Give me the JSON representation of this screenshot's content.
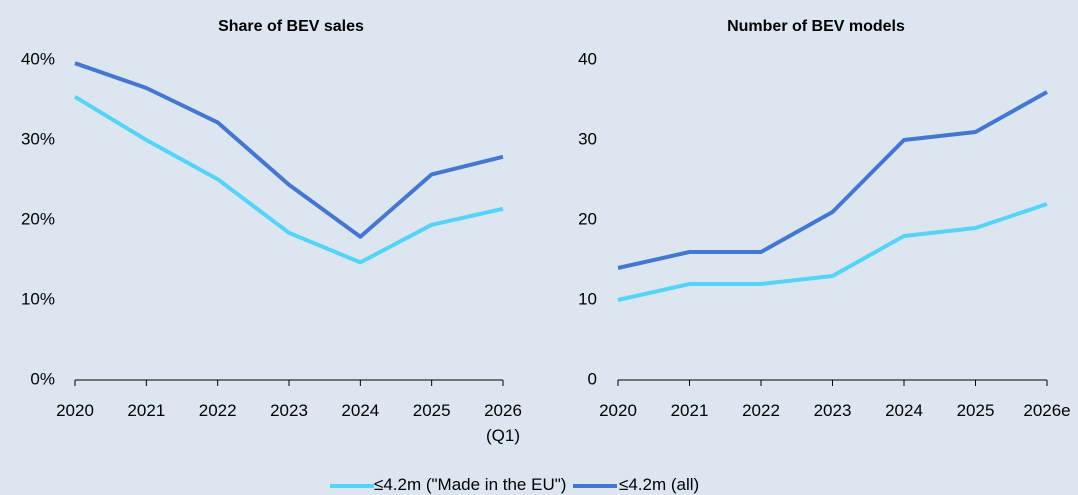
{
  "chart_data": [
    {
      "type": "line",
      "title": "Share of BEV sales",
      "categories": [
        "2020",
        "2021",
        "2022",
        "2023",
        "2024",
        "2025",
        "2026\n(Q1)"
      ],
      "series": [
        {
          "name": "≤4.2m (\"Made in the EU\")",
          "color": "#55d3f8",
          "values": [
            35.4,
            30,
            25.1,
            18.4,
            14.7,
            19.4,
            21.4
          ]
        },
        {
          "name": "≤4.2m (all)",
          "color": "#4677d0",
          "values": [
            39.6,
            36.5,
            32.2,
            24.4,
            17.9,
            25.7,
            27.9
          ]
        }
      ],
      "ylim": [
        0,
        40
      ],
      "yticks": [
        {
          "value": 0,
          "label": "0%"
        },
        {
          "value": 10,
          "label": "10%"
        },
        {
          "value": 20,
          "label": "20%"
        },
        {
          "value": 30,
          "label": "30%"
        },
        {
          "value": 40,
          "label": "40%"
        }
      ],
      "grid": false
    },
    {
      "type": "line",
      "title": "Number of BEV models",
      "categories": [
        "2020",
        "2021",
        "2022",
        "2023",
        "2024",
        "2025",
        "2026e"
      ],
      "series": [
        {
          "color": "#55d3f8",
          "values": [
            10,
            12,
            12,
            13,
            18,
            19,
            22
          ]
        },
        {
          "color": "#4677d0",
          "values": [
            14,
            16,
            16,
            21,
            30,
            31,
            36
          ]
        }
      ],
      "ylim": [
        0,
        40
      ],
      "yticks": [
        0,
        10,
        20,
        30,
        40
      ],
      "grid": false
    }
  ]
}
